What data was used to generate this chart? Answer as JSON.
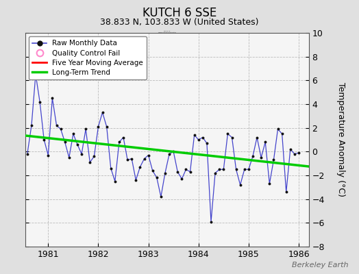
{
  "title": "KUTCH 6 SSE",
  "subtitle": "38.833 N, 103.833 W (United States)",
  "ylabel": "Temperature Anomaly (°C)",
  "watermark": "Berkeley Earth",
  "ylim": [
    -8,
    10
  ],
  "xlim": [
    1980.54,
    1986.2
  ],
  "yticks": [
    -8,
    -6,
    -4,
    -2,
    0,
    2,
    4,
    6,
    8,
    10
  ],
  "xticks": [
    1981,
    1982,
    1983,
    1984,
    1985,
    1986
  ],
  "bg_color": "#e0e0e0",
  "plot_bg_color": "#f5f5f5",
  "raw_color": "#4444cc",
  "raw_marker_color": "#111111",
  "trend_color": "#00cc00",
  "mavg_color": "#ff0000",
  "qc_color": "#ff88cc",
  "raw_data_x": [
    1980.583,
    1980.667,
    1980.75,
    1980.833,
    1980.917,
    1981.0,
    1981.083,
    1981.167,
    1981.25,
    1981.333,
    1981.417,
    1981.5,
    1981.583,
    1981.667,
    1981.75,
    1981.833,
    1981.917,
    1982.0,
    1982.083,
    1982.167,
    1982.25,
    1982.333,
    1982.417,
    1982.5,
    1982.583,
    1982.667,
    1982.75,
    1982.833,
    1982.917,
    1983.0,
    1983.083,
    1983.167,
    1983.25,
    1983.333,
    1983.417,
    1983.5,
    1983.583,
    1983.667,
    1983.75,
    1983.833,
    1983.917,
    1984.0,
    1984.083,
    1984.167,
    1984.25,
    1984.333,
    1984.417,
    1984.5,
    1984.583,
    1984.667,
    1984.75,
    1984.833,
    1984.917,
    1985.0,
    1985.083,
    1985.167,
    1985.25,
    1985.333,
    1985.417,
    1985.5,
    1985.583,
    1985.667,
    1985.75,
    1985.833,
    1985.917,
    1986.0
  ],
  "raw_data_y": [
    -0.2,
    2.2,
    6.5,
    4.2,
    1.0,
    -0.3,
    4.5,
    2.2,
    1.9,
    0.8,
    -0.5,
    1.5,
    0.6,
    -0.2,
    1.9,
    -0.9,
    -0.4,
    2.1,
    3.3,
    2.1,
    -1.4,
    -2.5,
    0.8,
    1.2,
    -0.7,
    -0.6,
    -2.4,
    -1.3,
    -0.6,
    -0.3,
    -1.6,
    -2.2,
    -3.8,
    -1.8,
    -0.2,
    0.0,
    -1.7,
    -2.3,
    -1.5,
    -1.7,
    1.4,
    1.0,
    1.2,
    0.7,
    -5.9,
    -1.8,
    -1.5,
    -1.5,
    1.5,
    1.2,
    -1.5,
    -2.8,
    -1.5,
    -1.5,
    -0.4,
    1.2,
    -0.5,
    0.8,
    -2.7,
    -0.7,
    1.9,
    1.5,
    -3.4,
    0.2,
    -0.2,
    -0.1
  ],
  "trend_x": [
    1980.54,
    1986.2
  ],
  "trend_y": [
    1.35,
    -1.25
  ],
  "title_fontsize": 12,
  "subtitle_fontsize": 9,
  "tick_fontsize": 9,
  "ylabel_fontsize": 9
}
